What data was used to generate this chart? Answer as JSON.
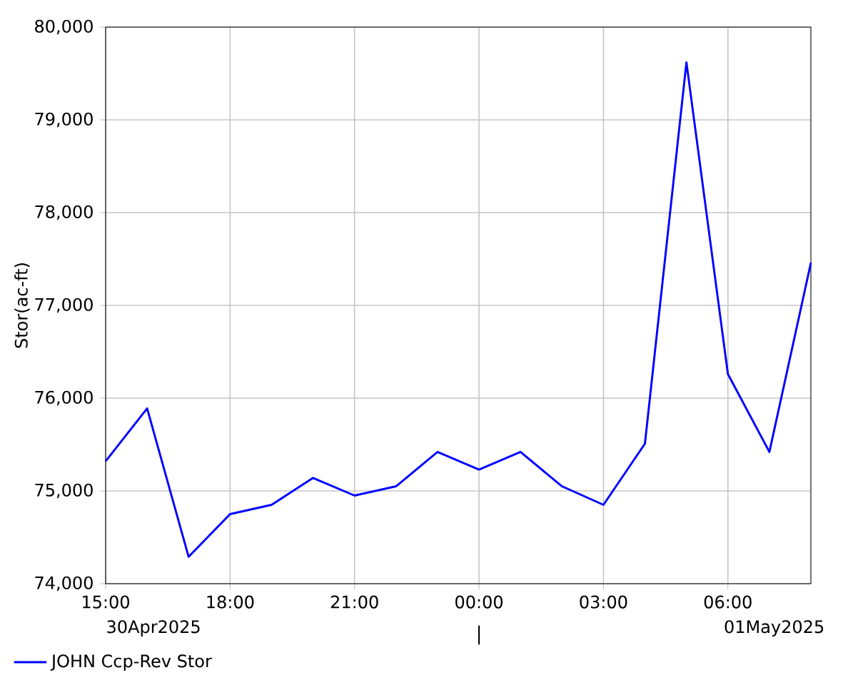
{
  "chart_data": {
    "type": "line",
    "ylabel": "Stor(ac-ft)",
    "x": [
      "2025-04-30T15:00",
      "2025-04-30T16:00",
      "2025-04-30T17:00",
      "2025-04-30T18:00",
      "2025-04-30T19:00",
      "2025-04-30T20:00",
      "2025-04-30T21:00",
      "2025-04-30T22:00",
      "2025-04-30T23:00",
      "2025-05-01T00:00",
      "2025-05-01T01:00",
      "2025-05-01T02:00",
      "2025-05-01T03:00",
      "2025-05-01T04:00",
      "2025-05-01T05:00",
      "2025-05-01T06:00",
      "2025-05-01T07:00",
      "2025-05-01T08:00"
    ],
    "series": [
      {
        "name": "JOHN Ccp-Rev Stor",
        "color": "#0000ff",
        "values": [
          75320,
          75890,
          74290,
          74750,
          74850,
          75140,
          74950,
          75050,
          75420,
          75230,
          75420,
          75050,
          74850,
          75510,
          79620,
          76260,
          75420,
          77460
        ]
      }
    ],
    "xlim": [
      "2025-04-30T15:00",
      "2025-05-01T08:00"
    ],
    "xticks": [
      {
        "value": "2025-04-30T15:00",
        "label": "15:00"
      },
      {
        "value": "2025-04-30T18:00",
        "label": "18:00"
      },
      {
        "value": "2025-04-30T21:00",
        "label": "21:00"
      },
      {
        "value": "2025-05-01T00:00",
        "label": "00:00"
      },
      {
        "value": "2025-05-01T03:00",
        "label": "03:00"
      },
      {
        "value": "2025-05-01T06:00",
        "label": "06:00"
      }
    ],
    "ylim": [
      74000,
      80000
    ],
    "yticks": [
      {
        "value": 74000,
        "label": "74,000"
      },
      {
        "value": 75000,
        "label": "75,000"
      },
      {
        "value": 76000,
        "label": "76,000"
      },
      {
        "value": 77000,
        "label": "77,000"
      },
      {
        "value": 78000,
        "label": "78,000"
      },
      {
        "value": 79000,
        "label": "79,000"
      },
      {
        "value": 80000,
        "label": "80,000"
      }
    ],
    "annotations": [
      "30Apr2025",
      "01May2025"
    ],
    "grid": true,
    "legend": "bottom left",
    "marker": "none",
    "line_style": "solid"
  }
}
